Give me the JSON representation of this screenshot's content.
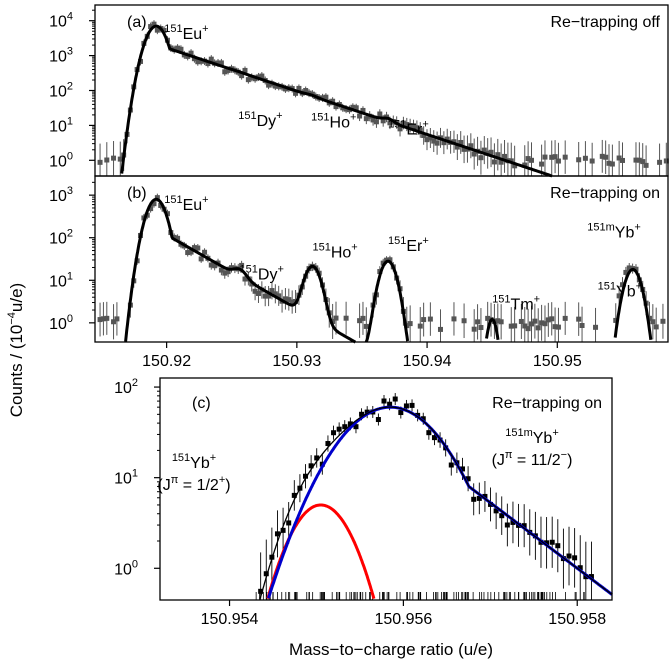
{
  "figure": {
    "ylabel_pre": "Counts / (10",
    "ylabel_exp": "−4",
    "ylabel_post": "u/e)",
    "xlabel": "Mass−to−charge ratio (u/e)"
  },
  "colors": {
    "axis": "#000000",
    "data": "#555555",
    "fit": "#000000",
    "yb151": "#ff0000",
    "yb151m": "#0000cc"
  },
  "chart_data": [
    {
      "id": "a",
      "type": "scatter",
      "panel_label": "(a)",
      "condition": "Re−trapping off",
      "xlim": [
        150.9145,
        150.9585
      ],
      "ylog": true,
      "ylim_exp": [
        -0.45,
        4.45
      ],
      "yticks": [
        {
          "exp": 0,
          "label": "10",
          "sup": "0"
        },
        {
          "exp": 1,
          "label": "10",
          "sup": "1"
        },
        {
          "exp": 2,
          "label": "10",
          "sup": "2"
        },
        {
          "exp": 3,
          "label": "10",
          "sup": "3"
        },
        {
          "exp": 4,
          "label": "10",
          "sup": "4"
        }
      ],
      "peaks": [
        {
          "label": "Eu",
          "iso": "151",
          "charge": "+",
          "x": 150.9192,
          "amp": 7000,
          "sigma": 0.0006,
          "tail": 0.0035,
          "tailfrac": 0.03
        },
        {
          "label": "Dy",
          "iso": "151",
          "charge": "+",
          "x": 150.9255,
          "amp": 5,
          "sigma": 0.00045,
          "tail": 0,
          "tailfrac": 0
        },
        {
          "label": "Ho",
          "iso": "151",
          "charge": "+",
          "x": 150.9311,
          "amp": 4.5,
          "sigma": 0.00045,
          "tail": 0,
          "tailfrac": 0
        },
        {
          "label": "Er",
          "iso": "151",
          "charge": "+",
          "x": 150.937,
          "amp": 2.8,
          "sigma": 0.0004,
          "tail": 0,
          "tailfrac": 0
        }
      ]
    },
    {
      "id": "b",
      "type": "scatter",
      "panel_label": "(b)",
      "condition": "Re−trapping on",
      "xlim": [
        150.9145,
        150.9585
      ],
      "ylog": true,
      "ylim_exp": [
        -0.45,
        3.45
      ],
      "yticks": [
        {
          "exp": 0,
          "label": "10",
          "sup": "0"
        },
        {
          "exp": 1,
          "label": "10",
          "sup": "1"
        },
        {
          "exp": 2,
          "label": "10",
          "sup": "2"
        },
        {
          "exp": 3,
          "label": "10",
          "sup": "3"
        }
      ],
      "xticks": [
        150.92,
        150.93,
        150.94,
        150.95
      ],
      "peaks": [
        {
          "label": "Eu",
          "iso": "151",
          "charge": "+",
          "x": 150.9192,
          "amp": 800,
          "sigma": 0.0006,
          "tail": 0.0025,
          "tailfrac": 0.02
        },
        {
          "label": "Dy",
          "iso": "151",
          "charge": "+",
          "x": 150.9256,
          "amp": 6,
          "sigma": 0.00045,
          "tail": 0,
          "tailfrac": 0
        },
        {
          "label": "Ho",
          "iso": "151",
          "charge": "+",
          "x": 150.9312,
          "amp": 20,
          "sigma": 0.0005,
          "tail": 0,
          "tailfrac": 0
        },
        {
          "label": "Er",
          "iso": "151",
          "charge": "+",
          "x": 150.937,
          "amp": 28,
          "sigma": 0.0005,
          "tail": 0,
          "tailfrac": 0
        },
        {
          "label": "Tm",
          "iso": "151",
          "charge": "+",
          "x": 150.945,
          "amp": 1.2,
          "sigma": 0.0003,
          "tail": 0,
          "tailfrac": 0
        },
        {
          "label": "Yb",
          "iso": "151",
          "charge": "+",
          "x": 150.9551,
          "amp": 3,
          "sigma": 0.0004,
          "tail": 0,
          "tailfrac": 0
        },
        {
          "label": "Yb",
          "iso": "151m",
          "charge": "+",
          "x": 150.9558,
          "amp": 18,
          "sigma": 0.0005,
          "tail": 0,
          "tailfrac": 0
        }
      ]
    },
    {
      "id": "c",
      "type": "scatter",
      "panel_label": "(c)",
      "condition": "Re−trapping on",
      "xlim": [
        150.9532,
        150.9584
      ],
      "ylog": true,
      "ylim_exp": [
        -0.35,
        2.1
      ],
      "yticks": [
        {
          "exp": 0,
          "label": "10",
          "sup": "0"
        },
        {
          "exp": 1,
          "label": "10",
          "sup": "1"
        },
        {
          "exp": 2,
          "label": "10",
          "sup": "2"
        }
      ],
      "xticks": [
        150.954,
        150.956,
        150.958
      ],
      "ground": {
        "label": "Yb",
        "iso": "151",
        "charge": "+",
        "spin": "(J",
        "pi": "π",
        "spinval": " = 1/2",
        "parity": "+",
        "close": ")",
        "x": 150.95505,
        "amp": 5,
        "sigma": 0.00028
      },
      "isomer": {
        "label": "Yb",
        "iso": "151m",
        "charge": "+",
        "spin": "(J",
        "pi": "π",
        "spinval": " = 11/2",
        "parity": "−",
        "close": ")",
        "x": 150.95585,
        "amp": 60,
        "sigma": 0.00045,
        "tail": 0.0006
      }
    }
  ]
}
